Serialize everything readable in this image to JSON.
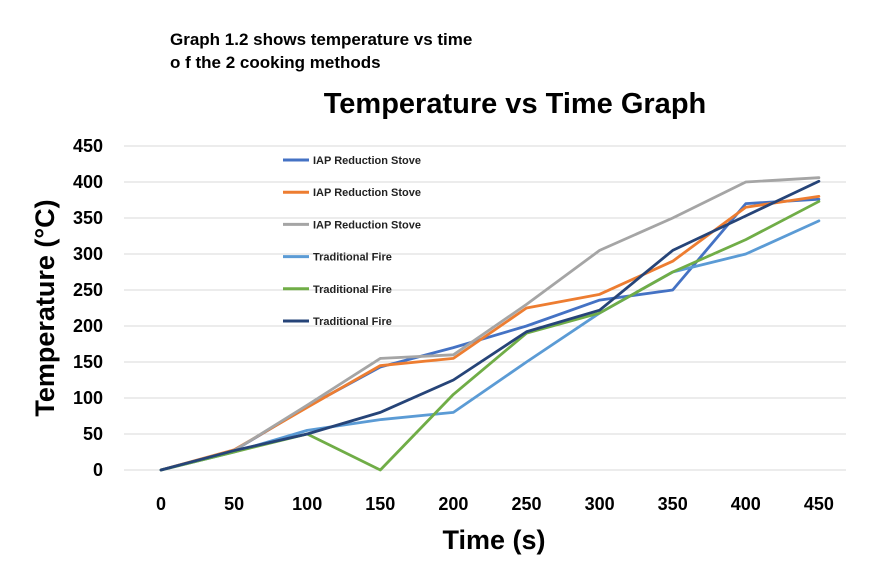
{
  "caption": {
    "line1": "Graph 1.2 shows temperature vs time",
    "line2": "o f the 2 cooking methods"
  },
  "chart_data": {
    "type": "line",
    "title": "Temperature vs Time Graph",
    "xlabel": "Time (s)",
    "ylabel": "Temperature (°C)",
    "x": [
      0,
      50,
      100,
      150,
      200,
      250,
      300,
      350,
      400,
      450
    ],
    "x_tick_labels": [
      "0",
      "50",
      "100",
      "150",
      "200",
      "250",
      "300",
      "350",
      "400",
      "450"
    ],
    "y_tick_labels": [
      "0",
      "50",
      "100",
      "150",
      "200",
      "250",
      "300",
      "350",
      "400",
      "450"
    ],
    "ylim": [
      0,
      450
    ],
    "grid": "horizontal",
    "legend_position": "upper-left",
    "series": [
      {
        "name": "IAP Reduction Stove",
        "color": "#4472C4",
        "values": [
          0,
          27,
          88,
          143,
          170,
          200,
          236,
          250,
          370,
          376
        ]
      },
      {
        "name": "IAP Reduction Stove",
        "color": "#ED7D31",
        "values": [
          0,
          28,
          87,
          145,
          155,
          225,
          244,
          290,
          365,
          380
        ]
      },
      {
        "name": "IAP Reduction Stove",
        "color": "#A5A5A5",
        "values": [
          0,
          27,
          90,
          155,
          160,
          230,
          305,
          350,
          400,
          406
        ]
      },
      {
        "name": "Traditional Fire",
        "color": "#5B9BD5",
        "values": [
          0,
          25,
          55,
          70,
          80,
          150,
          218,
          275,
          300,
          346
        ]
      },
      {
        "name": "Traditional Fire",
        "color": "#70AD47",
        "values": [
          0,
          25,
          50,
          0,
          105,
          190,
          218,
          275,
          320,
          373
        ]
      },
      {
        "name": "Traditional Fire",
        "color": "#264478",
        "values": [
          0,
          27,
          50,
          80,
          125,
          192,
          222,
          305,
          353,
          401
        ]
      }
    ]
  }
}
